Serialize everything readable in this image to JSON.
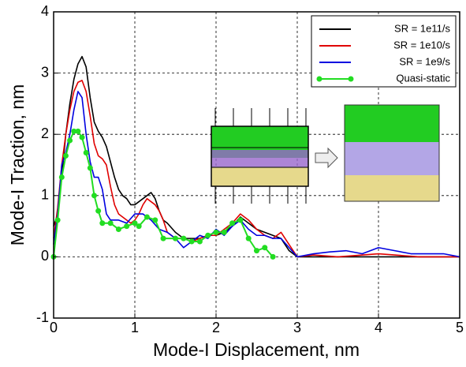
{
  "chart_data": {
    "type": "line",
    "xlabel": "Mode-I Displacement, nm",
    "ylabel": "Mode-I Traction, nm",
    "xlim": [
      0,
      5
    ],
    "xticks": [
      0,
      1,
      2,
      3,
      4,
      5
    ],
    "ylim": [
      -1,
      4
    ],
    "yticks": [
      -1,
      0,
      1,
      2,
      3,
      4
    ],
    "grid": true,
    "legend": "upper right",
    "series": [
      {
        "name": "SR = 1e11/s",
        "color": "#000000",
        "marker": false,
        "x": [
          0,
          0.05,
          0.1,
          0.15,
          0.2,
          0.25,
          0.3,
          0.35,
          0.4,
          0.45,
          0.5,
          0.55,
          0.6,
          0.65,
          0.7,
          0.75,
          0.8,
          0.85,
          0.9,
          0.95,
          1.0,
          1.05,
          1.1,
          1.15,
          1.2,
          1.25,
          1.3,
          1.35,
          1.4,
          1.5,
          1.6,
          1.7,
          1.8,
          1.9,
          2.0,
          2.1,
          2.2,
          2.3,
          2.4,
          2.5,
          2.6,
          2.7,
          2.8,
          2.9,
          3.0,
          3.2,
          3.5,
          4.0,
          4.5,
          5.0
        ],
        "values": [
          0.5,
          0.7,
          1.3,
          2.0,
          2.5,
          2.9,
          3.15,
          3.27,
          3.1,
          2.6,
          2.2,
          2.05,
          1.95,
          1.8,
          1.55,
          1.3,
          1.1,
          1.0,
          0.95,
          0.85,
          0.85,
          0.9,
          0.95,
          1.0,
          1.05,
          0.95,
          0.75,
          0.6,
          0.55,
          0.4,
          0.3,
          0.3,
          0.3,
          0.35,
          0.35,
          0.4,
          0.5,
          0.65,
          0.55,
          0.45,
          0.4,
          0.35,
          0.3,
          0.1,
          0.0,
          0.0,
          0.0,
          0.0,
          0.0,
          0.0
        ]
      },
      {
        "name": "SR = 1e10/s",
        "color": "#e00000",
        "marker": false,
        "x": [
          0,
          0.05,
          0.1,
          0.15,
          0.2,
          0.25,
          0.3,
          0.35,
          0.4,
          0.45,
          0.5,
          0.55,
          0.6,
          0.65,
          0.7,
          0.75,
          0.8,
          0.85,
          0.9,
          0.95,
          1.0,
          1.05,
          1.1,
          1.15,
          1.2,
          1.25,
          1.3,
          1.35,
          1.4,
          1.5,
          1.6,
          1.7,
          1.8,
          1.9,
          2.0,
          2.1,
          2.2,
          2.3,
          2.4,
          2.5,
          2.6,
          2.7,
          2.8,
          2.9,
          3.0,
          3.2,
          3.5,
          4.0,
          4.5,
          5.0
        ],
        "values": [
          0.3,
          0.8,
          1.5,
          2.0,
          2.4,
          2.7,
          2.85,
          2.88,
          2.7,
          2.3,
          1.85,
          1.65,
          1.6,
          1.5,
          1.15,
          0.85,
          0.7,
          0.65,
          0.6,
          0.55,
          0.6,
          0.7,
          0.85,
          0.95,
          0.9,
          0.85,
          0.75,
          0.6,
          0.4,
          0.3,
          0.3,
          0.25,
          0.3,
          0.35,
          0.35,
          0.45,
          0.55,
          0.7,
          0.6,
          0.45,
          0.35,
          0.3,
          0.4,
          0.2,
          0.0,
          0.03,
          0.0,
          0.05,
          0.0,
          0.0
        ]
      },
      {
        "name": "SR = 1e9/s",
        "color": "#0000e0",
        "marker": false,
        "x": [
          0,
          0.05,
          0.1,
          0.15,
          0.2,
          0.25,
          0.3,
          0.35,
          0.4,
          0.45,
          0.5,
          0.55,
          0.6,
          0.65,
          0.7,
          0.8,
          0.9,
          1.0,
          1.1,
          1.2,
          1.3,
          1.4,
          1.5,
          1.6,
          1.7,
          1.8,
          1.9,
          2.0,
          2.1,
          2.2,
          2.3,
          2.4,
          2.5,
          2.6,
          2.7,
          2.8,
          2.9,
          3.0,
          3.2,
          3.4,
          3.6,
          3.8,
          4.0,
          4.2,
          4.4,
          4.6,
          4.8,
          5.0
        ],
        "values": [
          0.2,
          0.7,
          1.5,
          1.7,
          2.0,
          2.4,
          2.7,
          2.6,
          2.0,
          1.55,
          1.3,
          1.3,
          1.1,
          0.7,
          0.6,
          0.6,
          0.55,
          0.7,
          0.7,
          0.6,
          0.45,
          0.4,
          0.3,
          0.15,
          0.25,
          0.35,
          0.3,
          0.45,
          0.35,
          0.5,
          0.6,
          0.45,
          0.35,
          0.35,
          0.3,
          0.3,
          0.15,
          0.0,
          0.05,
          0.08,
          0.1,
          0.05,
          0.15,
          0.1,
          0.05,
          0.05,
          0.05,
          0.0
        ]
      },
      {
        "name": "Quasi-static",
        "color": "#22dd22",
        "marker": true,
        "x": [
          0,
          0.05,
          0.1,
          0.15,
          0.2,
          0.25,
          0.3,
          0.35,
          0.4,
          0.45,
          0.5,
          0.55,
          0.6,
          0.7,
          0.8,
          0.9,
          1.0,
          1.05,
          1.15,
          1.25,
          1.35,
          1.5,
          1.6,
          1.7,
          1.8,
          1.9,
          2.0,
          2.1,
          2.2,
          2.3,
          2.4,
          2.5,
          2.6,
          2.7
        ],
        "values": [
          0,
          0.6,
          1.3,
          1.65,
          1.9,
          2.05,
          2.05,
          1.95,
          1.7,
          1.45,
          1.0,
          0.75,
          0.55,
          0.55,
          0.45,
          0.5,
          0.55,
          0.5,
          0.65,
          0.6,
          0.3,
          0.3,
          0.3,
          0.25,
          0.25,
          0.35,
          0.4,
          0.4,
          0.55,
          0.6,
          0.3,
          0.1,
          0.15,
          0.0
        ]
      }
    ]
  }
}
